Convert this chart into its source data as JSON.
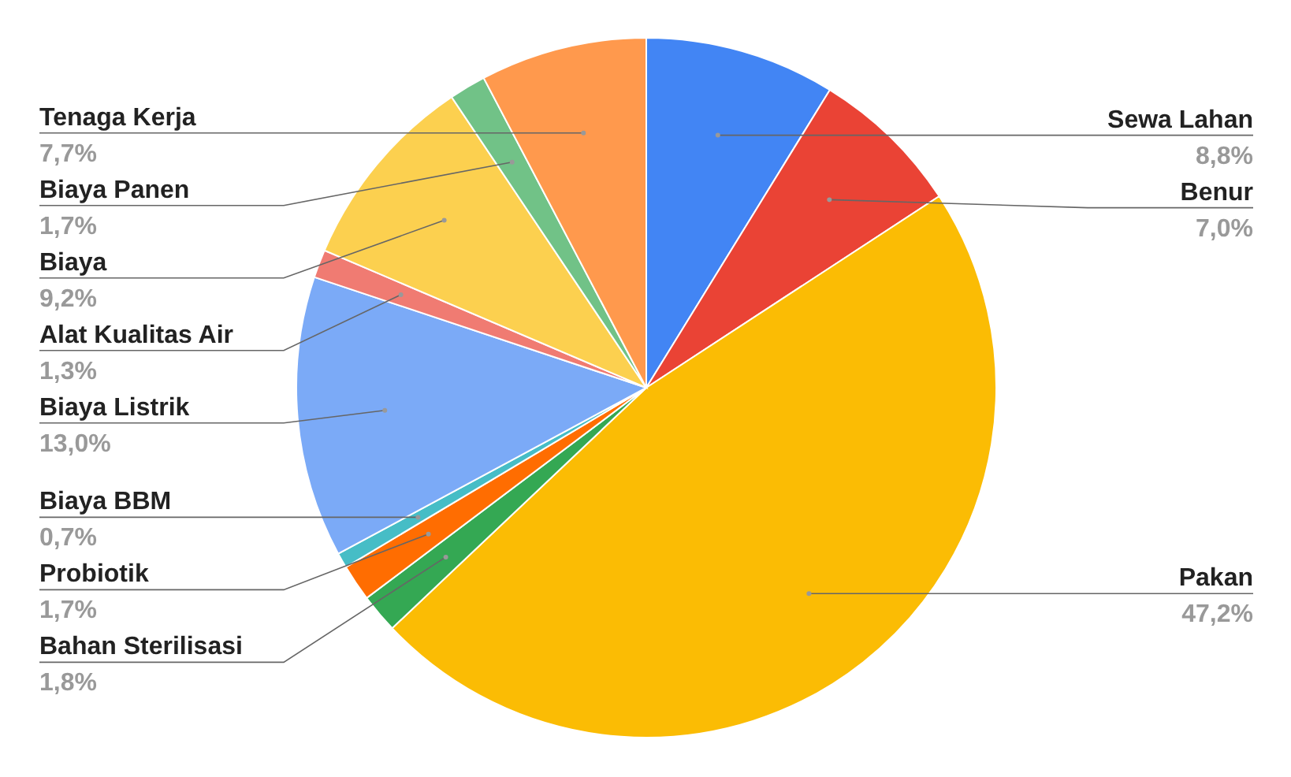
{
  "chart_data": {
    "type": "pie",
    "categories": [
      "Sewa Lahan",
      "Benur",
      "Pakan",
      "Bahan Sterilisasi",
      "Probiotik",
      "Biaya BBM",
      "Biaya Listrik",
      "Alat Kualitas Air",
      "Biaya",
      "Biaya Panen",
      "Tenaga Kerja"
    ],
    "values": [
      8.8,
      7.0,
      47.2,
      1.8,
      1.7,
      0.7,
      13.0,
      1.3,
      9.2,
      1.7,
      7.7
    ],
    "colors": [
      "#4285f4",
      "#ea4335",
      "#fbbc04",
      "#34a853",
      "#ff6d01",
      "#46bdc6",
      "#7baaf7",
      "#f07b72",
      "#fcd04f",
      "#71c287",
      "#ff994d"
    ],
    "value_labels": [
      "8,8%",
      "7,0%",
      "47,2%",
      "1,8%",
      "1,7%",
      "0,7%",
      "13,0%",
      "1,3%",
      "9,2%",
      "1,7%",
      "7,7%"
    ]
  }
}
